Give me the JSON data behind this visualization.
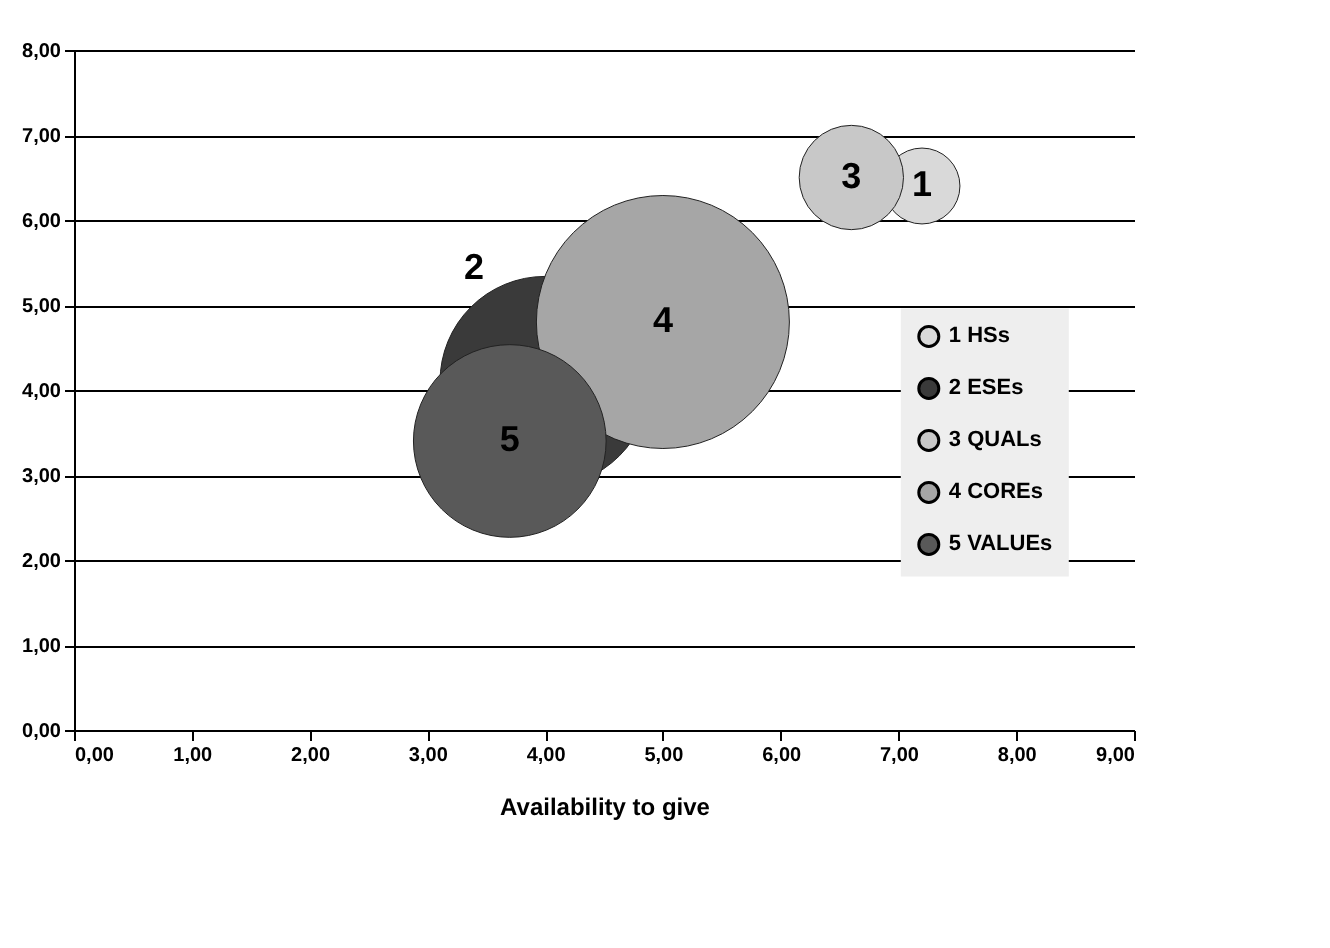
{
  "chart_data": {
    "type": "bubble",
    "xlabel": "Availability to give",
    "series": [
      {
        "name": "1 HSs",
        "color": "#d9d9d9",
        "x": [
          7.2
        ],
        "values": [
          6.4
        ],
        "sizes": [
          0.09
        ]
      },
      {
        "name": "2 ESEs",
        "color": "#3a3a3a",
        "x": [
          4.0
        ],
        "values": [
          4.1
        ],
        "sizes": [
          0.69
        ]
      },
      {
        "name": "3 QUALs",
        "color": "#c8c8c8",
        "x": [
          6.6
        ],
        "values": [
          6.5
        ],
        "sizes": [
          0.17
        ]
      },
      {
        "name": "4 COREs",
        "color": "#a6a6a6",
        "x": [
          5.0
        ],
        "values": [
          4.8
        ],
        "sizes": [
          1
        ]
      },
      {
        "name": "5 VALUEs",
        "color": "#595959",
        "x": [
          3.7
        ],
        "values": [
          3.4
        ],
        "sizes": [
          0.58
        ]
      }
    ],
    "annotations": [
      "1",
      "2",
      "3",
      "4",
      "5"
    ],
    "xlim": [
      0,
      9
    ],
    "xticks": [
      {
        "value": 0,
        "label": "0,00"
      },
      {
        "value": 1,
        "label": "1,00"
      },
      {
        "value": 2,
        "label": "2,00"
      },
      {
        "value": 3,
        "label": "3,00"
      },
      {
        "value": 4,
        "label": "4,00"
      },
      {
        "value": 5,
        "label": "5,00"
      },
      {
        "value": 6,
        "label": "6,00"
      },
      {
        "value": 7,
        "label": "7,00"
      },
      {
        "value": 8,
        "label": "8,00"
      },
      {
        "value": 9,
        "label": "9,00"
      }
    ],
    "ylim": [
      0,
      8
    ],
    "yticks": [
      {
        "value": 0,
        "label": "0,00"
      },
      {
        "value": 1,
        "label": "1,00"
      },
      {
        "value": 2,
        "label": "2,00"
      },
      {
        "value": 3,
        "label": "3,00"
      },
      {
        "value": 4,
        "label": "4,00"
      },
      {
        "value": 5,
        "label": "5,00"
      },
      {
        "value": 6,
        "label": "6,00"
      },
      {
        "value": 7,
        "label": "7,00"
      },
      {
        "value": 8,
        "label": "8,00"
      }
    ],
    "grid": "y",
    "legend": "right"
  }
}
